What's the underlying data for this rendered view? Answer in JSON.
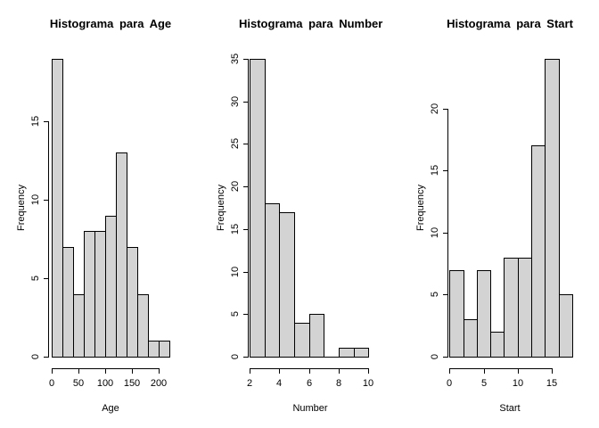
{
  "colors": {
    "background": "#ffffff",
    "bar_fill": "#d3d3d3",
    "bar_border": "#000000",
    "text": "#000000"
  },
  "chart_data": [
    {
      "type": "bar",
      "subtype": "histogram",
      "title": "Histograma para Age",
      "xlabel": "Age",
      "ylabel": "Frequency",
      "bin_start": 0,
      "bin_width": 20,
      "bin_edges": [
        0,
        20,
        40,
        60,
        80,
        100,
        120,
        140,
        160,
        180,
        200,
        220
      ],
      "counts": [
        19,
        7,
        4,
        8,
        8,
        9,
        13,
        7,
        4,
        1,
        1
      ],
      "x_ticks": [
        0,
        50,
        100,
        150,
        200
      ],
      "y_ticks": [
        0,
        5,
        10,
        15
      ],
      "xlim": [
        0,
        220
      ],
      "ylim": [
        0,
        19
      ],
      "grid": false,
      "legend": null
    },
    {
      "type": "bar",
      "subtype": "histogram",
      "title": "Histograma para Number",
      "xlabel": "Number",
      "ylabel": "Frequency",
      "bin_start": 2,
      "bin_width": 1,
      "bin_edges": [
        2,
        3,
        4,
        5,
        6,
        7,
        8,
        9,
        10
      ],
      "counts": [
        35,
        18,
        17,
        4,
        5,
        0,
        1,
        1
      ],
      "x_ticks": [
        2,
        4,
        6,
        8,
        10
      ],
      "y_ticks": [
        0,
        5,
        10,
        15,
        20,
        25,
        30,
        35
      ],
      "xlim": [
        2,
        10
      ],
      "ylim": [
        0,
        35
      ],
      "grid": false,
      "legend": null
    },
    {
      "type": "bar",
      "subtype": "histogram",
      "title": "Histograma para Start",
      "xlabel": "Start",
      "ylabel": "Frequency",
      "bin_start": 0,
      "bin_width": 2,
      "bin_edges": [
        0,
        2,
        4,
        6,
        8,
        10,
        12,
        14,
        16,
        18
      ],
      "counts": [
        7,
        3,
        7,
        2,
        8,
        8,
        17,
        24,
        5
      ],
      "x_ticks": [
        0,
        5,
        10,
        15
      ],
      "y_ticks": [
        0,
        5,
        10,
        15,
        20
      ],
      "xlim": [
        0,
        18
      ],
      "ylim": [
        0,
        24
      ],
      "grid": false,
      "legend": null
    }
  ]
}
